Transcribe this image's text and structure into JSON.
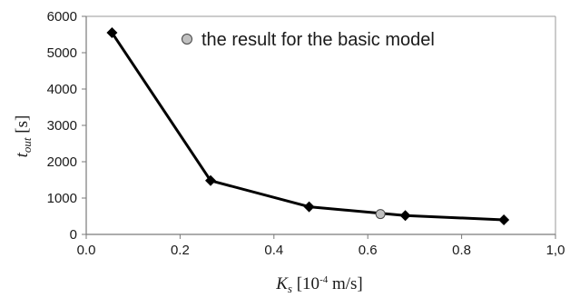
{
  "chart_data": {
    "type": "line",
    "title": "",
    "xlim": [
      0.0,
      1.0
    ],
    "ylim": [
      0,
      6000
    ],
    "x_ticks": [
      "0.0",
      "0.2",
      "0.4",
      "0.6",
      "0.8",
      "1,0"
    ],
    "x_tick_values": [
      0.0,
      0.2,
      0.4,
      0.6,
      0.8,
      1.0
    ],
    "y_ticks": [
      "0",
      "1000",
      "2000",
      "3000",
      "4000",
      "5000",
      "6000"
    ],
    "y_tick_values": [
      0,
      1000,
      2000,
      3000,
      4000,
      5000,
      6000
    ],
    "xlabel": {
      "symbol": "K",
      "subscript": "s",
      "prefix": " [10",
      "exponent": "-4",
      "unit": " m/s]"
    },
    "ylabel": {
      "symbol": "t",
      "subscript": "out",
      "unit": " [s]"
    },
    "grid": "none",
    "legend_position": "top-right",
    "series": [
      {
        "marker": "diamond",
        "color": "#000000",
        "x": [
          0.055,
          0.265,
          0.475,
          0.68,
          0.89
        ],
        "y": [
          5550,
          1480,
          760,
          520,
          400
        ]
      }
    ],
    "highlight_point": {
      "label": "the result for the basic model",
      "marker": "circle",
      "fill_color": "#c0c0c0",
      "x": 0.627,
      "y": 560
    }
  }
}
